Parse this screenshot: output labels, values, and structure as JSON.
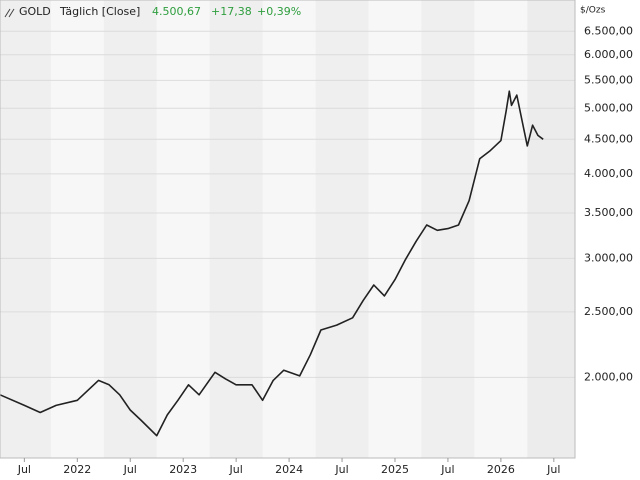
{
  "chart_data": {
    "type": "line",
    "symbol": "GOLD",
    "interval": "Täglich [Close]",
    "last": "4.500,67",
    "change": "+17,38",
    "change_pct": "+0,39%",
    "unit": "$/Ozs",
    "log_scale": true,
    "grid": true,
    "color": "#222222",
    "change_color": "#2e9e3e",
    "xlim": [
      2021.27,
      2026.7
    ],
    "ylim": [
      1520,
      7230
    ],
    "xticks": [
      {
        "value": 2021.5,
        "label": "Jul"
      },
      {
        "value": 2022,
        "label": "2022"
      },
      {
        "value": 2022.5,
        "label": "Jul"
      },
      {
        "value": 2023,
        "label": "2023"
      },
      {
        "value": 2023.5,
        "label": "Jul"
      },
      {
        "value": 2024,
        "label": "2024"
      },
      {
        "value": 2024.5,
        "label": "Jul"
      },
      {
        "value": 2025,
        "label": "2025"
      },
      {
        "value": 2025.5,
        "label": "Jul"
      },
      {
        "value": 2026,
        "label": "2026"
      },
      {
        "value": 2026.5,
        "label": "Jul"
      }
    ],
    "yticks": [
      {
        "value": 2000,
        "label": "2.000,00"
      },
      {
        "value": 2500,
        "label": "2.500,00"
      },
      {
        "value": 3000,
        "label": "3.000,00"
      },
      {
        "value": 3500,
        "label": "3.500,00"
      },
      {
        "value": 4000,
        "label": "4.000,00"
      },
      {
        "value": 4500,
        "label": "4.500,00"
      },
      {
        "value": 5000,
        "label": "5.000,00"
      },
      {
        "value": 5500,
        "label": "5.500,00"
      },
      {
        "value": 6000,
        "label": "6.000,00"
      },
      {
        "value": 6500,
        "label": "6.500,00"
      }
    ],
    "x": [
      2021.27,
      2021.5,
      2021.65,
      2021.8,
      2022.0,
      2022.2,
      2022.3,
      2022.4,
      2022.5,
      2022.6,
      2022.75,
      2022.85,
      2022.95,
      2023.05,
      2023.15,
      2023.3,
      2023.4,
      2023.5,
      2023.65,
      2023.75,
      2023.85,
      2023.95,
      2024.1,
      2024.2,
      2024.3,
      2024.45,
      2024.6,
      2024.7,
      2024.8,
      2024.9,
      2025.0,
      2025.1,
      2025.2,
      2025.3,
      2025.4,
      2025.5,
      2025.6,
      2025.7,
      2025.8,
      2025.9,
      2026.0,
      2026.05,
      2026.08,
      2026.1,
      2026.15,
      2026.2,
      2026.25,
      2026.3,
      2026.35,
      2026.4
    ],
    "values": [
      1885,
      1818,
      1775,
      1818,
      1850,
      1980,
      1950,
      1885,
      1790,
      1730,
      1640,
      1760,
      1850,
      1950,
      1885,
      2035,
      1990,
      1950,
      1950,
      1850,
      1980,
      2050,
      2010,
      2160,
      2350,
      2390,
      2450,
      2600,
      2740,
      2640,
      2790,
      2990,
      3180,
      3360,
      3300,
      3320,
      3360,
      3650,
      4210,
      4330,
      4480,
      4960,
      5300,
      5050,
      5230,
      4790,
      4400,
      4720,
      4560,
      4500
    ]
  }
}
